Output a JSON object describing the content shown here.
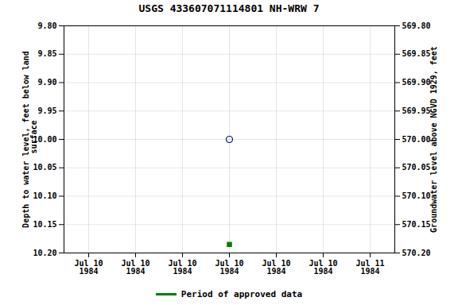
{
  "chart_data": {
    "type": "scatter",
    "title": "USGS 433607071114801 NH-WRW    7",
    "categories": [
      "Jul 10\n1984",
      "Jul 10\n1984",
      "Jul 10\n1984",
      "Jul 10\n1984",
      "Jul 10\n1984",
      "Jul 10\n1984",
      "Jul 11\n1984"
    ],
    "series": [
      {
        "color": "#0000bb",
        "marker": "circle",
        "values": [
          null,
          null,
          null,
          10.0,
          null,
          null,
          null
        ]
      },
      {
        "name": "Period of approved data",
        "color": "#008000",
        "marker": "square",
        "values": [
          null,
          null,
          null,
          10.185,
          null,
          null,
          null
        ]
      }
    ],
    "ylabel": "Depth to water level, feet below land\n surface",
    "y2label": "Groundwater level above NGVD 1929, feet",
    "ylim": [
      10.2,
      9.8
    ],
    "yticks": [
      {
        "value": 9.8,
        "label": "9.80"
      },
      9.85,
      {
        "value": 9.9,
        "label": "9.90"
      },
      9.95,
      {
        "value": 10.0,
        "label": "10.00"
      },
      10.05,
      {
        "value": 10.1,
        "label": "10.10"
      },
      10.15,
      {
        "value": 10.2,
        "label": "10.20"
      }
    ],
    "y2lim": [
      570.2,
      569.8
    ],
    "y2ticks": [
      {
        "value": 570.2,
        "label": "570.20"
      },
      570.15,
      {
        "value": 570.1,
        "label": "570.10"
      },
      570.05,
      {
        "value": 570.0,
        "label": "570.00"
      },
      569.95,
      {
        "value": 569.9,
        "label": "569.90"
      },
      569.85,
      {
        "value": 569.8,
        "label": "569.80"
      }
    ],
    "grid": true,
    "legend": "bottom"
  }
}
